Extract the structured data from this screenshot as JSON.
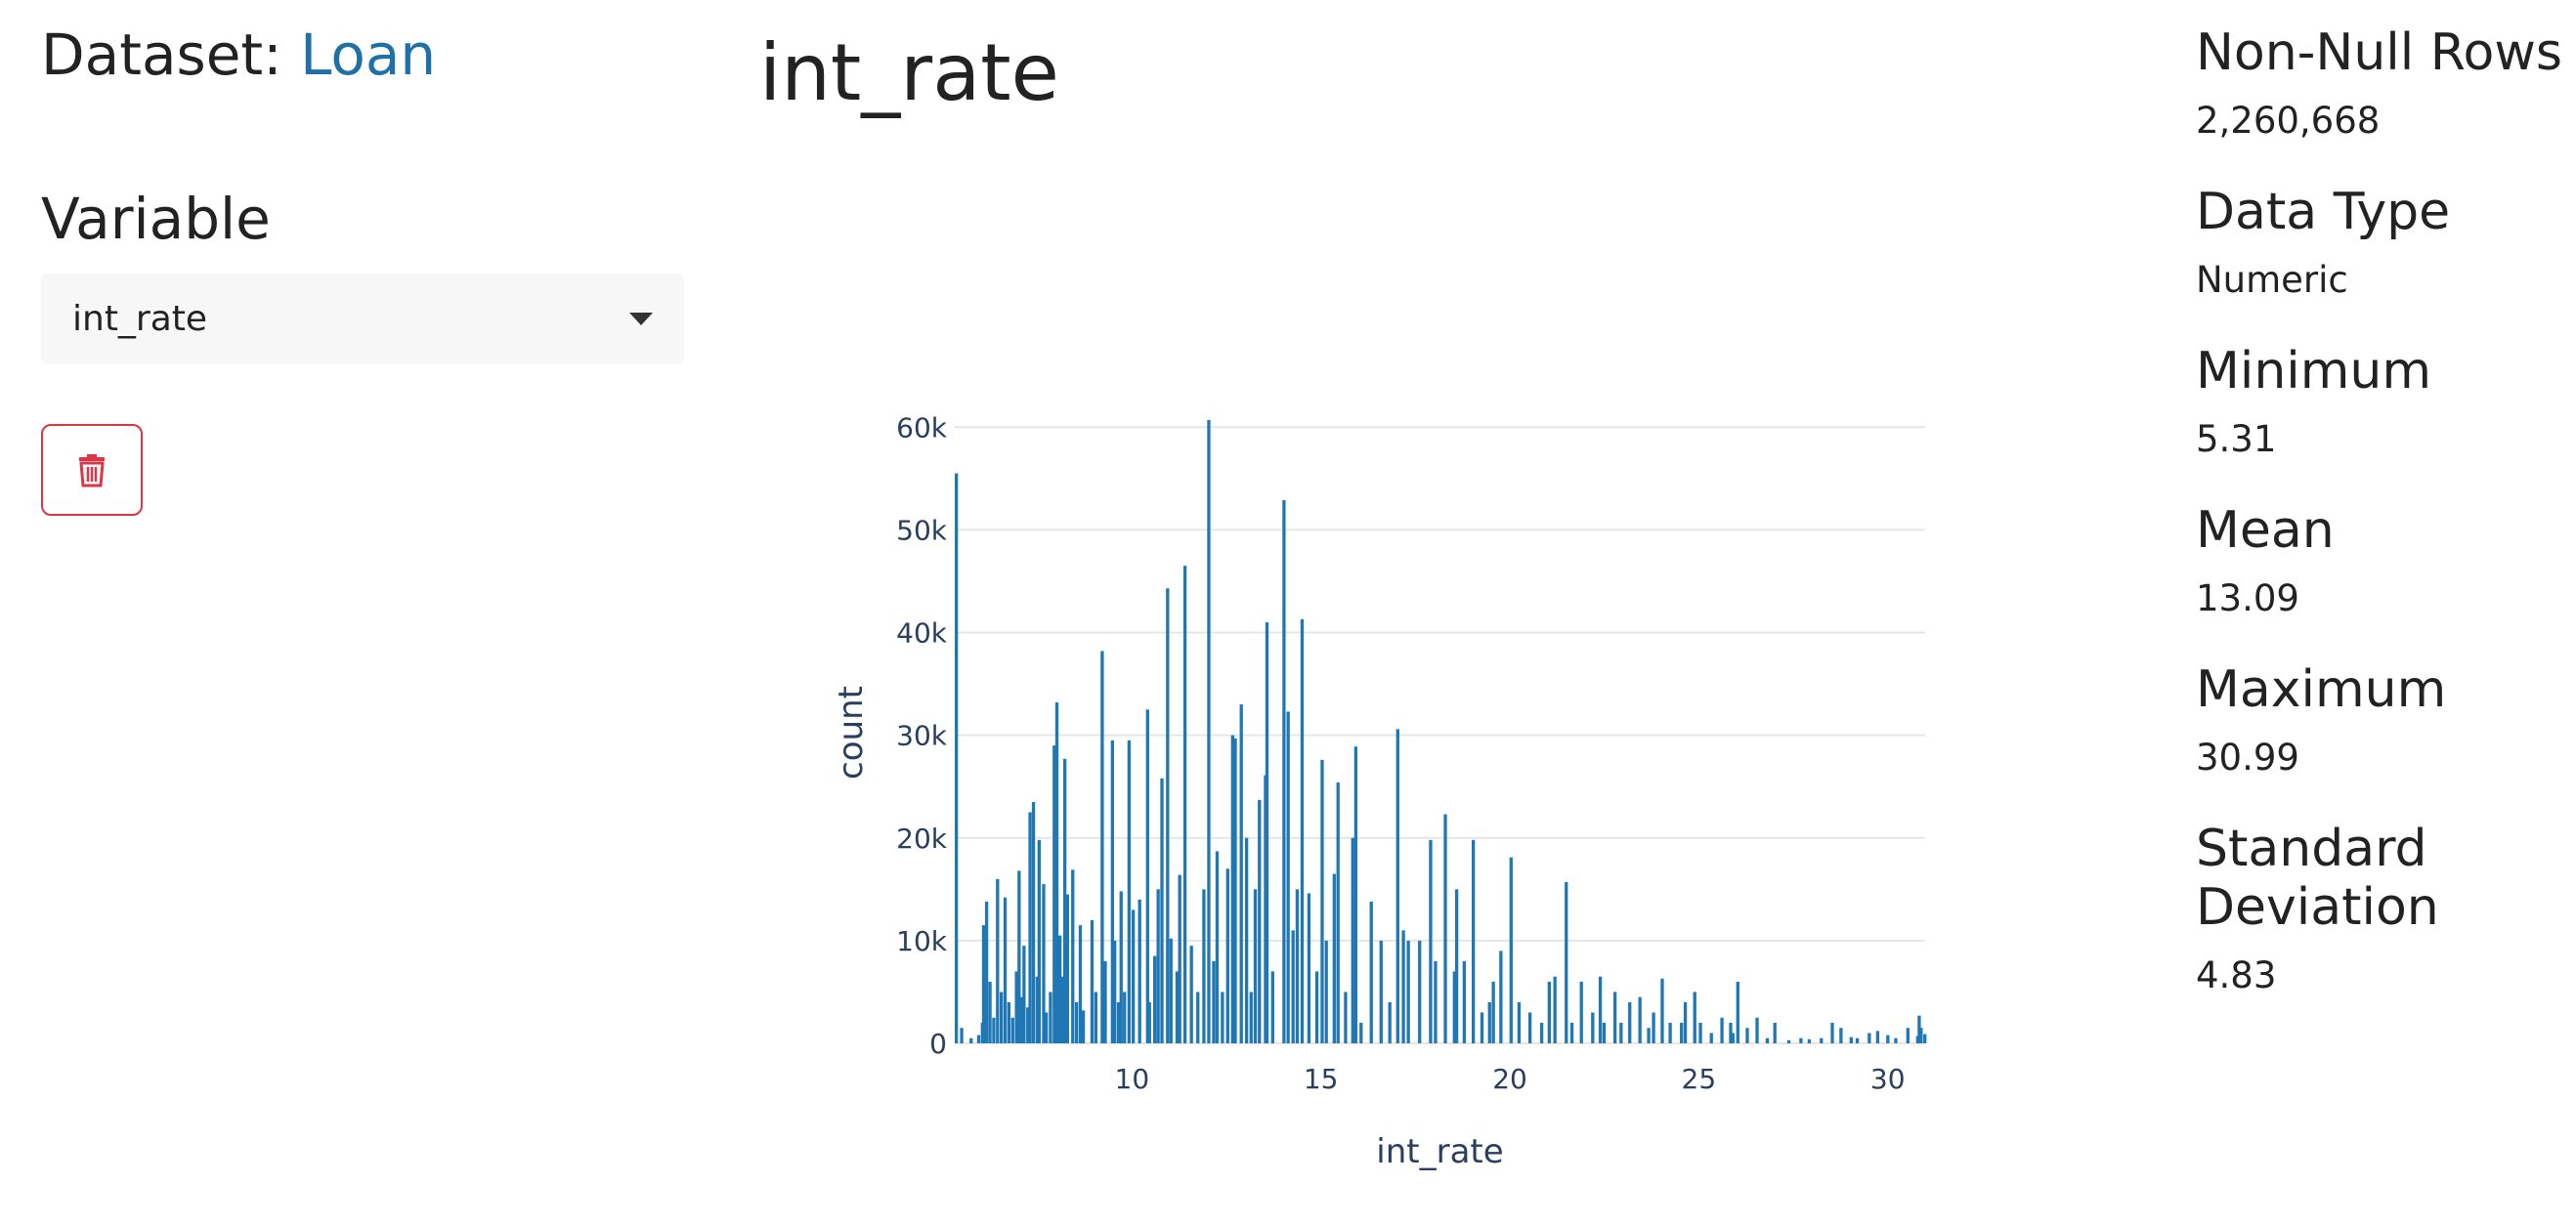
{
  "header": {
    "dataset_prefix": "Dataset:",
    "dataset_name": "Loan"
  },
  "sidebar": {
    "variable_label": "Variable",
    "select": {
      "value": "int_rate"
    },
    "delete_button": {
      "icon": "trash-icon",
      "color": "#dc3545"
    }
  },
  "main": {
    "title": "int_rate"
  },
  "chart_data": {
    "type": "bar",
    "title": "",
    "xlabel": "int_rate",
    "ylabel": "count",
    "xlim": [
      5.31,
      30.99
    ],
    "ylim": [
      0,
      60500
    ],
    "xticks": [
      "10",
      "15",
      "20",
      "25",
      "30"
    ],
    "yticks": [
      "0",
      "10k",
      "20k",
      "30k",
      "40k",
      "50k",
      "60k"
    ],
    "color": "#1f77b4",
    "grid": true,
    "bins": [
      [
        5.31,
        55500
      ],
      [
        5.45,
        1500
      ],
      [
        5.7,
        500
      ],
      [
        5.9,
        800
      ],
      [
        6.0,
        2000
      ],
      [
        6.03,
        11500
      ],
      [
        6.11,
        13800
      ],
      [
        6.2,
        6000
      ],
      [
        6.3,
        2500
      ],
      [
        6.4,
        16000
      ],
      [
        6.5,
        5000
      ],
      [
        6.6,
        14200
      ],
      [
        6.7,
        4000
      ],
      [
        6.8,
        2500
      ],
      [
        6.9,
        7000
      ],
      [
        6.97,
        16800
      ],
      [
        7.05,
        4500
      ],
      [
        7.1,
        9500
      ],
      [
        7.2,
        3500
      ],
      [
        7.26,
        22500
      ],
      [
        7.35,
        23500
      ],
      [
        7.45,
        6500
      ],
      [
        7.5,
        19800
      ],
      [
        7.62,
        15500
      ],
      [
        7.69,
        3000
      ],
      [
        7.8,
        5000
      ],
      [
        7.9,
        29000
      ],
      [
        7.97,
        33200
      ],
      [
        8.05,
        10500
      ],
      [
        8.1,
        6500
      ],
      [
        8.18,
        27700
      ],
      [
        8.25,
        14500
      ],
      [
        8.39,
        16900
      ],
      [
        8.49,
        4000
      ],
      [
        8.59,
        11500
      ],
      [
        8.67,
        3200
      ],
      [
        8.9,
        12000
      ],
      [
        9.0,
        5000
      ],
      [
        9.17,
        38200
      ],
      [
        9.25,
        8000
      ],
      [
        9.44,
        29500
      ],
      [
        9.5,
        10000
      ],
      [
        9.6,
        4000
      ],
      [
        9.67,
        14800
      ],
      [
        9.76,
        5000
      ],
      [
        9.88,
        29500
      ],
      [
        9.99,
        13000
      ],
      [
        10.16,
        14000
      ],
      [
        10.37,
        32500
      ],
      [
        10.42,
        4000
      ],
      [
        10.56,
        8500
      ],
      [
        10.65,
        15000
      ],
      [
        10.75,
        25800
      ],
      [
        10.9,
        44300
      ],
      [
        10.99,
        10200
      ],
      [
        11.15,
        7000
      ],
      [
        11.22,
        16400
      ],
      [
        11.36,
        46500
      ],
      [
        11.53,
        9500
      ],
      [
        11.7,
        5000
      ],
      [
        11.86,
        15000
      ],
      [
        11.99,
        60700
      ],
      [
        12.12,
        8000
      ],
      [
        12.21,
        18700
      ],
      [
        12.35,
        5000
      ],
      [
        12.49,
        17000
      ],
      [
        12.62,
        30000
      ],
      [
        12.69,
        29700
      ],
      [
        12.85,
        33000
      ],
      [
        12.99,
        20000
      ],
      [
        13.11,
        5000
      ],
      [
        13.22,
        15000
      ],
      [
        13.33,
        23700
      ],
      [
        13.49,
        26100
      ],
      [
        13.53,
        41000
      ],
      [
        13.68,
        7000
      ],
      [
        13.98,
        52900
      ],
      [
        14.09,
        32300
      ],
      [
        14.22,
        11000
      ],
      [
        14.33,
        15000
      ],
      [
        14.46,
        41300
      ],
      [
        14.64,
        14600
      ],
      [
        14.85,
        7000
      ],
      [
        14.99,
        27600
      ],
      [
        15.1,
        10000
      ],
      [
        15.31,
        16500
      ],
      [
        15.41,
        25400
      ],
      [
        15.61,
        5000
      ],
      [
        15.8,
        20000
      ],
      [
        15.88,
        28900
      ],
      [
        16.02,
        2000
      ],
      [
        16.29,
        13800
      ],
      [
        16.55,
        10000
      ],
      [
        16.78,
        4000
      ],
      [
        16.99,
        30600
      ],
      [
        17.14,
        11000
      ],
      [
        17.27,
        10000
      ],
      [
        17.57,
        10000
      ],
      [
        17.86,
        19800
      ],
      [
        17.99,
        8000
      ],
      [
        18.25,
        22300
      ],
      [
        18.49,
        7000
      ],
      [
        18.55,
        15000
      ],
      [
        18.75,
        8000
      ],
      [
        18.99,
        19800
      ],
      [
        19.22,
        3000
      ],
      [
        19.42,
        4000
      ],
      [
        19.52,
        6000
      ],
      [
        19.72,
        9000
      ],
      [
        19.99,
        18100
      ],
      [
        20.2,
        4000
      ],
      [
        20.49,
        3000
      ],
      [
        20.8,
        2000
      ],
      [
        21.0,
        6000
      ],
      [
        21.15,
        6500
      ],
      [
        21.45,
        15700
      ],
      [
        21.6,
        2000
      ],
      [
        21.85,
        6000
      ],
      [
        22.15,
        3000
      ],
      [
        22.35,
        6500
      ],
      [
        22.45,
        2000
      ],
      [
        22.74,
        5000
      ],
      [
        22.9,
        2000
      ],
      [
        23.13,
        4000
      ],
      [
        23.4,
        4500
      ],
      [
        23.63,
        1500
      ],
      [
        23.76,
        3000
      ],
      [
        23.99,
        6300
      ],
      [
        24.2,
        2000
      ],
      [
        24.5,
        2000
      ],
      [
        24.6,
        4000
      ],
      [
        24.85,
        5000
      ],
      [
        25.0,
        2000
      ],
      [
        25.29,
        1000
      ],
      [
        25.57,
        2500
      ],
      [
        25.8,
        2000
      ],
      [
        25.86,
        1000
      ],
      [
        25.99,
        6000
      ],
      [
        26.24,
        1500
      ],
      [
        26.5,
        2500
      ],
      [
        26.77,
        500
      ],
      [
        26.97,
        2000
      ],
      [
        27.34,
        300
      ],
      [
        27.66,
        500
      ],
      [
        27.88,
        400
      ],
      [
        28.2,
        500
      ],
      [
        28.49,
        2000
      ],
      [
        28.72,
        1500
      ],
      [
        28.99,
        600
      ],
      [
        29.15,
        500
      ],
      [
        29.47,
        1000
      ],
      [
        29.69,
        1200
      ],
      [
        29.96,
        800
      ],
      [
        30.17,
        500
      ],
      [
        30.49,
        1500
      ],
      [
        30.75,
        700
      ],
      [
        30.79,
        2700
      ],
      [
        30.84,
        1500
      ],
      [
        30.94,
        900
      ]
    ]
  },
  "stats": [
    {
      "label": "Non-Null Rows",
      "value": "2,260,668"
    },
    {
      "label": "Data Type",
      "value": "Numeric"
    },
    {
      "label": "Minimum",
      "value": "5.31"
    },
    {
      "label": "Mean",
      "value": "13.09"
    },
    {
      "label": "Maximum",
      "value": "30.99"
    },
    {
      "label": "Standard Deviation",
      "value": "4.83"
    }
  ]
}
